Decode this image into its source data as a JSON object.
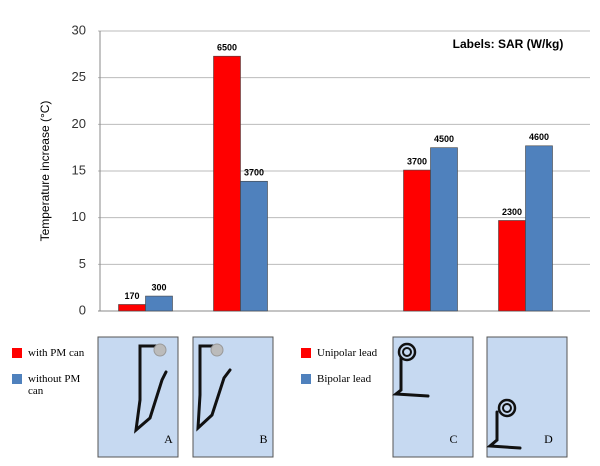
{
  "chart_data": {
    "type": "bar",
    "annotation": "Labels: SAR (W/kg)",
    "y_label": "Temperature increase (°C)",
    "categories": [
      "A",
      "B",
      null,
      "C",
      "D"
    ],
    "series": [
      {
        "color": "#ff0000",
        "values": [
          0.7,
          27.3,
          null,
          15.1,
          9.7
        ],
        "sar": [
          170,
          6500,
          null,
          3700,
          2300
        ]
      },
      {
        "color": "#4f81bd",
        "values": [
          1.6,
          13.9,
          null,
          17.5,
          17.7
        ],
        "sar": [
          300,
          3700,
          null,
          4500,
          4600
        ]
      }
    ],
    "legends": [
      [
        {
          "label": "with PM can",
          "color": "#ff0000"
        },
        {
          "label": "without PM can",
          "color": "#4f81bd"
        }
      ],
      [
        {
          "label": "Unipolar lead",
          "color": "#ff0000"
        },
        {
          "label": "Bipolar lead",
          "color": "#4f81bd"
        }
      ]
    ],
    "ylim": [
      0,
      30
    ],
    "yticks": [
      0,
      5,
      10,
      15,
      20,
      25,
      30
    ],
    "grid": true
  }
}
